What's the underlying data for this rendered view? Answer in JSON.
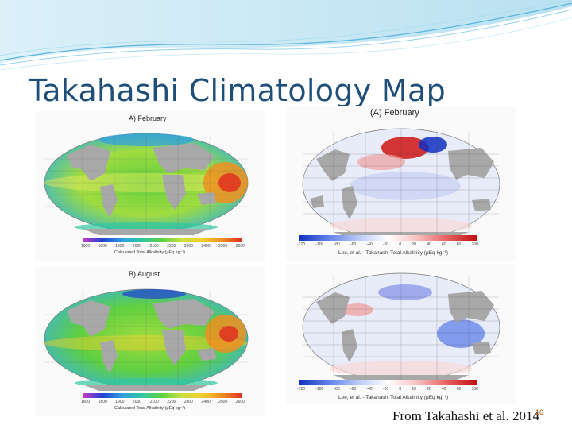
{
  "slide": {
    "title": "Takahashi Climatology Map",
    "footer": "From Takahashi et al. 2014",
    "slide_number": "16"
  },
  "panels": {
    "left_top": {
      "title": "A) February",
      "colorbar_labels": [
        "1600",
        "1800",
        "1900",
        "2000",
        "2100",
        "2200",
        "2300",
        "2400",
        "2500",
        "2600"
      ],
      "colorbar_caption": "Calculated Total Alkalinity (μEq kg⁻¹)"
    },
    "left_bottom": {
      "title": "B) August",
      "colorbar_labels": [
        "1600",
        "1800",
        "1900",
        "2000",
        "2100",
        "2200",
        "2300",
        "2400",
        "2500",
        "2600"
      ],
      "colorbar_caption": "Calculated Total Alkalinity (μEq kg⁻¹)"
    },
    "right_top": {
      "title": "(A) February",
      "colorbar_labels": [
        "-120",
        "-100",
        "-80",
        "-60",
        "-40",
        "-20",
        "0",
        "20",
        "40",
        "60",
        "80",
        "100"
      ],
      "colorbar_caption": "Lee, et al. - Takahashi Total Alkalinity (μEq kg⁻¹)"
    },
    "right_bottom": {
      "title": "",
      "colorbar_labels": [
        "-120",
        "-100",
        "-80",
        "-60",
        "-40",
        "-20",
        "0",
        "10",
        "20",
        "40",
        "60",
        "100"
      ],
      "colorbar_caption": "Lee, et al. - Takahashi Total Alkalinity (μEq kg⁻¹)"
    }
  },
  "colors": {
    "title": "#1f4e79",
    "land": "#a8a8a8",
    "alkalinity_scale": [
      "#c83cc8",
      "#2040d0",
      "#30a0e0",
      "#30c8a0",
      "#60d040",
      "#c8e040",
      "#f0d030",
      "#f09020",
      "#e03020"
    ],
    "difference_scale": [
      "#1030c0",
      "#6080e8",
      "#b8c8f8",
      "#ffffff",
      "#f8c0c0",
      "#e86060",
      "#c01010"
    ]
  }
}
